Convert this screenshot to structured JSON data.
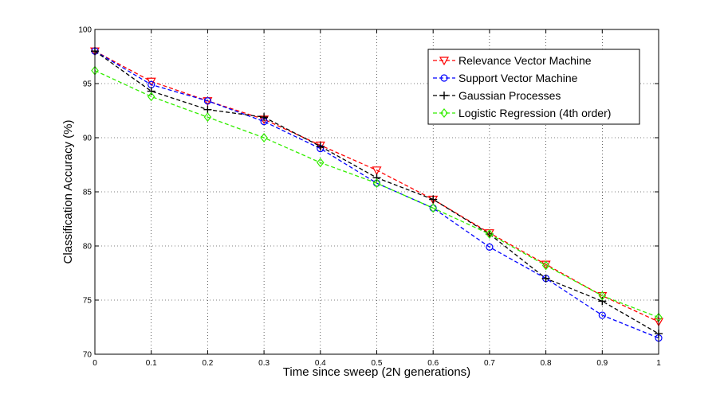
{
  "chart_data": {
    "type": "line",
    "title": "",
    "xlabel": "Time since sweep (2N generations)",
    "ylabel": "Classification Accuracy (%)",
    "xlim": [
      0,
      1
    ],
    "ylim": [
      70,
      100
    ],
    "xticks": [
      "0",
      "0.1",
      "0.2",
      "0.3",
      "0.4",
      "0.5",
      "0.6",
      "0.7",
      "0.8",
      "0.9",
      "1"
    ],
    "yticks": [
      "70",
      "75",
      "80",
      "85",
      "90",
      "95",
      "100"
    ],
    "grid": "dotted",
    "legend_position": "top-right",
    "x": [
      0,
      0.1,
      0.2,
      0.3,
      0.4,
      0.5,
      0.6,
      0.7,
      0.8,
      0.9,
      1.0
    ],
    "series": [
      {
        "name": "Relevance Vector Machine",
        "color": "#ff0000",
        "marker": "triangle-down",
        "values": [
          98.0,
          95.2,
          93.4,
          91.7,
          89.3,
          87.0,
          84.3,
          81.2,
          78.3,
          75.4,
          73.0
        ]
      },
      {
        "name": "Support Vector Machine",
        "color": "#0000ff",
        "marker": "circle",
        "values": [
          98.0,
          94.9,
          93.4,
          91.5,
          89.0,
          85.8,
          83.5,
          79.9,
          77.0,
          73.6,
          71.5
        ]
      },
      {
        "name": "Gaussian Processes",
        "color": "#000000",
        "marker": "plus",
        "values": [
          98.0,
          94.3,
          92.6,
          91.9,
          89.2,
          86.3,
          84.3,
          81.1,
          77.0,
          74.9,
          71.9
        ]
      },
      {
        "name": "Logistic Regression (4th order)",
        "color": "#33ee00",
        "marker": "diamond",
        "values": [
          96.2,
          93.8,
          91.9,
          90.0,
          87.7,
          85.8,
          83.5,
          81.1,
          78.2,
          75.4,
          73.4
        ]
      }
    ]
  }
}
